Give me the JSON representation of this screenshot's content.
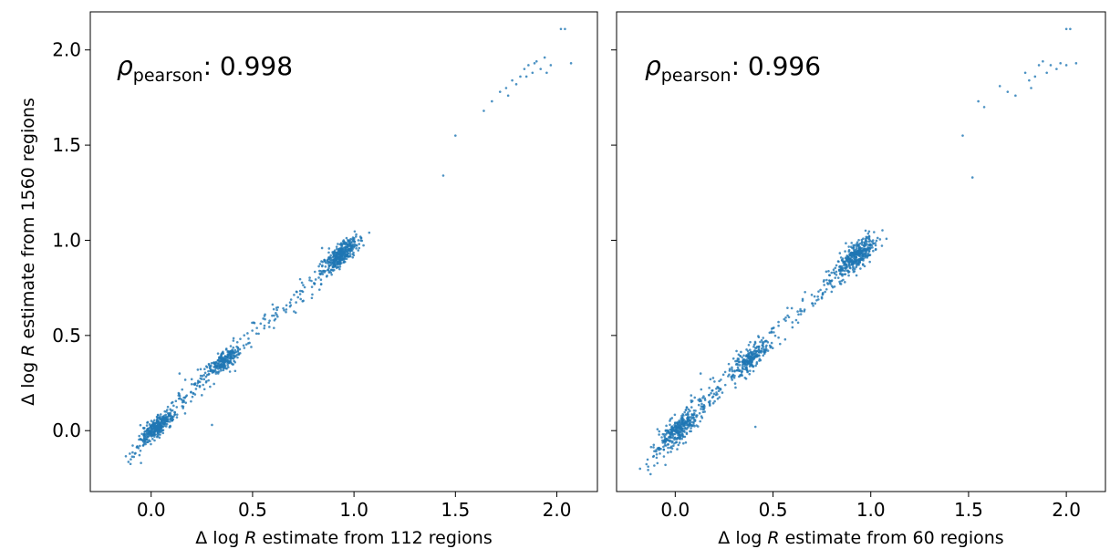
{
  "colors": {
    "points": "#1f77b4",
    "frame": "#000000"
  },
  "chart_data": [
    {
      "type": "scatter",
      "xlabel": "Δ log R estimate from 112 regions",
      "xlabel_parts": {
        "prefix": "Δ log ",
        "var": "R",
        "suffix": " estimate from 112 regions"
      },
      "ylabel": "Δ log R estimate from 1560 regions",
      "ylabel_parts": {
        "prefix": "Δ log ",
        "var": "R",
        "suffix": " estimate from 1560 regions"
      },
      "annotation": {
        "symbol": "ρ",
        "subscript": "pearson",
        "text": ": 0.998"
      },
      "xlim": [
        -0.3,
        2.2
      ],
      "ylim": [
        -0.32,
        2.2
      ],
      "x_ticks": [
        "0.0",
        "0.5",
        "1.0",
        "1.5",
        "2.0"
      ],
      "y_ticks": [
        "0.0",
        "0.5",
        "1.0",
        "1.5",
        "2.0"
      ],
      "clusters": [
        {
          "x": 0.03,
          "y": 0.02,
          "n": 300,
          "spread": 0.03
        },
        {
          "x": 0.36,
          "y": 0.37,
          "n": 220,
          "spread": 0.03
        },
        {
          "x": 0.93,
          "y": 0.92,
          "n": 380,
          "spread": 0.035
        }
      ],
      "bridges": [
        {
          "from": [
            -0.12,
            -0.16
          ],
          "to": [
            0.05,
            0.05
          ],
          "n": 40,
          "spread": 0.025
        },
        {
          "from": [
            0.08,
            0.08
          ],
          "to": [
            0.32,
            0.33
          ],
          "n": 80,
          "spread": 0.03
        },
        {
          "from": [
            0.42,
            0.42
          ],
          "to": [
            0.86,
            0.84
          ],
          "n": 90,
          "spread": 0.03
        }
      ],
      "points": [
        [
          1.44,
          1.34
        ],
        [
          1.5,
          1.55
        ],
        [
          1.64,
          1.68
        ],
        [
          1.68,
          1.73
        ],
        [
          1.72,
          1.78
        ],
        [
          1.75,
          1.8
        ],
        [
          1.78,
          1.84
        ],
        [
          1.82,
          1.86
        ],
        [
          1.84,
          1.9
        ],
        [
          1.86,
          1.92
        ],
        [
          1.88,
          1.88
        ],
        [
          1.9,
          1.94
        ],
        [
          1.92,
          1.9
        ],
        [
          1.94,
          1.96
        ],
        [
          1.95,
          1.88
        ],
        [
          1.97,
          1.92
        ],
        [
          1.85,
          1.86
        ],
        [
          1.8,
          1.82
        ],
        [
          1.76,
          1.76
        ],
        [
          1.89,
          1.93
        ],
        [
          2.02,
          2.11
        ],
        [
          2.04,
          2.11
        ],
        [
          2.07,
          1.93
        ],
        [
          0.3,
          0.03
        ],
        [
          0.14,
          0.3
        ],
        [
          0.2,
          0.27
        ],
        [
          -0.05,
          -0.17
        ],
        [
          0.23,
          0.32
        ]
      ]
    },
    {
      "type": "scatter",
      "xlabel": "Δ log R estimate from 60 regions",
      "xlabel_parts": {
        "prefix": "Δ log ",
        "var": "R",
        "suffix": " estimate from 60 regions"
      },
      "annotation": {
        "symbol": "ρ",
        "subscript": "pearson",
        "text": ": 0.996"
      },
      "xlim": [
        -0.3,
        2.2
      ],
      "ylim": [
        -0.32,
        2.2
      ],
      "x_ticks": [
        "0.0",
        "0.5",
        "1.0",
        "1.5",
        "2.0"
      ],
      "clusters": [
        {
          "x": 0.02,
          "y": 0.01,
          "n": 300,
          "spread": 0.04
        },
        {
          "x": 0.38,
          "y": 0.38,
          "n": 220,
          "spread": 0.035
        },
        {
          "x": 0.93,
          "y": 0.92,
          "n": 380,
          "spread": 0.04
        }
      ],
      "bridges": [
        {
          "from": [
            -0.14,
            -0.18
          ],
          "to": [
            0.04,
            0.04
          ],
          "n": 40,
          "spread": 0.03
        },
        {
          "from": [
            0.08,
            0.08
          ],
          "to": [
            0.33,
            0.34
          ],
          "n": 80,
          "spread": 0.035
        },
        {
          "from": [
            0.44,
            0.44
          ],
          "to": [
            0.86,
            0.84
          ],
          "n": 90,
          "spread": 0.035
        }
      ],
      "points": [
        [
          1.47,
          1.55
        ],
        [
          1.52,
          1.33
        ],
        [
          1.55,
          1.73
        ],
        [
          1.58,
          1.7
        ],
        [
          1.66,
          1.81
        ],
        [
          1.7,
          1.78
        ],
        [
          1.74,
          1.76
        ],
        [
          1.79,
          1.88
        ],
        [
          1.81,
          1.84
        ],
        [
          1.84,
          1.86
        ],
        [
          1.86,
          1.92
        ],
        [
          1.88,
          1.94
        ],
        [
          1.9,
          1.88
        ],
        [
          1.92,
          1.92
        ],
        [
          1.95,
          1.9
        ],
        [
          1.97,
          1.93
        ],
        [
          2.0,
          1.92
        ],
        [
          1.82,
          1.8
        ],
        [
          2.0,
          2.11
        ],
        [
          2.02,
          2.11
        ],
        [
          2.05,
          1.93
        ],
        [
          0.41,
          0.02
        ],
        [
          0.13,
          0.3
        ],
        [
          0.18,
          0.27
        ],
        [
          -0.05,
          -0.18
        ],
        [
          -0.18,
          -0.2
        ]
      ]
    }
  ]
}
